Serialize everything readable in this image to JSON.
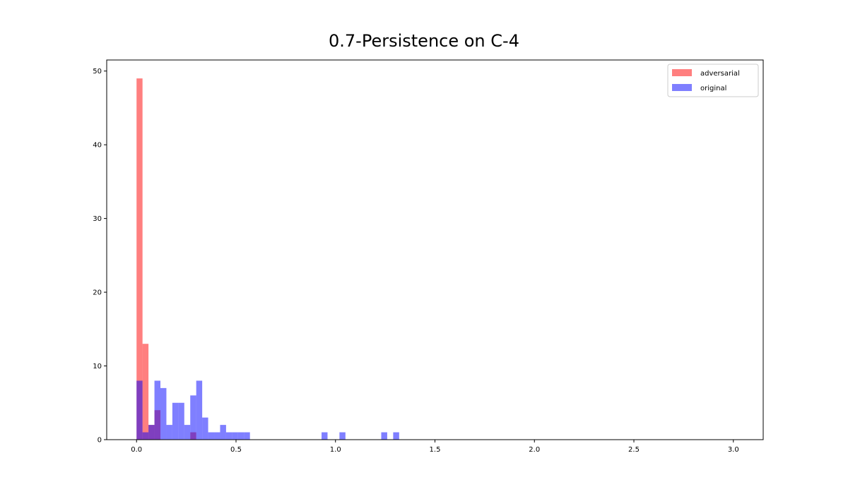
{
  "chart_data": {
    "type": "bar",
    "subtype": "histogram",
    "title": "0.7-Persistence on C-4",
    "xlabel": "",
    "ylabel": "",
    "xlim": [
      -0.15,
      3.15
    ],
    "ylim": [
      0,
      51.5
    ],
    "xticks": [
      0.0,
      0.5,
      1.0,
      1.5,
      2.0,
      2.5,
      3.0
    ],
    "xtick_labels": [
      "0.0",
      "0.5",
      "1.0",
      "1.5",
      "2.0",
      "2.5",
      "3.0"
    ],
    "yticks": [
      0,
      10,
      20,
      30,
      40,
      50
    ],
    "ytick_labels": [
      "0",
      "10",
      "20",
      "30",
      "40",
      "50"
    ],
    "grid": false,
    "legend_position": "top-right",
    "bin_width": 0.03,
    "series": [
      {
        "name": "adversarial",
        "color": "#ff0000",
        "alpha": 0.5,
        "bins": [
          {
            "x": 0.0,
            "count": 49
          },
          {
            "x": 0.03,
            "count": 13
          },
          {
            "x": 0.06,
            "count": 2
          },
          {
            "x": 0.09,
            "count": 4
          },
          {
            "x": 0.27,
            "count": 1
          }
        ]
      },
      {
        "name": "original",
        "color": "#0000ff",
        "alpha": 0.5,
        "bins": [
          {
            "x": 0.0,
            "count": 8
          },
          {
            "x": 0.03,
            "count": 1
          },
          {
            "x": 0.06,
            "count": 2
          },
          {
            "x": 0.09,
            "count": 8
          },
          {
            "x": 0.12,
            "count": 7
          },
          {
            "x": 0.15,
            "count": 2
          },
          {
            "x": 0.18,
            "count": 5
          },
          {
            "x": 0.21,
            "count": 5
          },
          {
            "x": 0.24,
            "count": 2
          },
          {
            "x": 0.27,
            "count": 6
          },
          {
            "x": 0.3,
            "count": 8
          },
          {
            "x": 0.33,
            "count": 3
          },
          {
            "x": 0.36,
            "count": 1
          },
          {
            "x": 0.39,
            "count": 1
          },
          {
            "x": 0.42,
            "count": 2
          },
          {
            "x": 0.45,
            "count": 1
          },
          {
            "x": 0.48,
            "count": 1
          },
          {
            "x": 0.51,
            "count": 1
          },
          {
            "x": 0.54,
            "count": 1
          },
          {
            "x": 0.93,
            "count": 1
          },
          {
            "x": 1.02,
            "count": 1
          },
          {
            "x": 1.23,
            "count": 1
          },
          {
            "x": 1.29,
            "count": 1
          }
        ]
      }
    ]
  }
}
